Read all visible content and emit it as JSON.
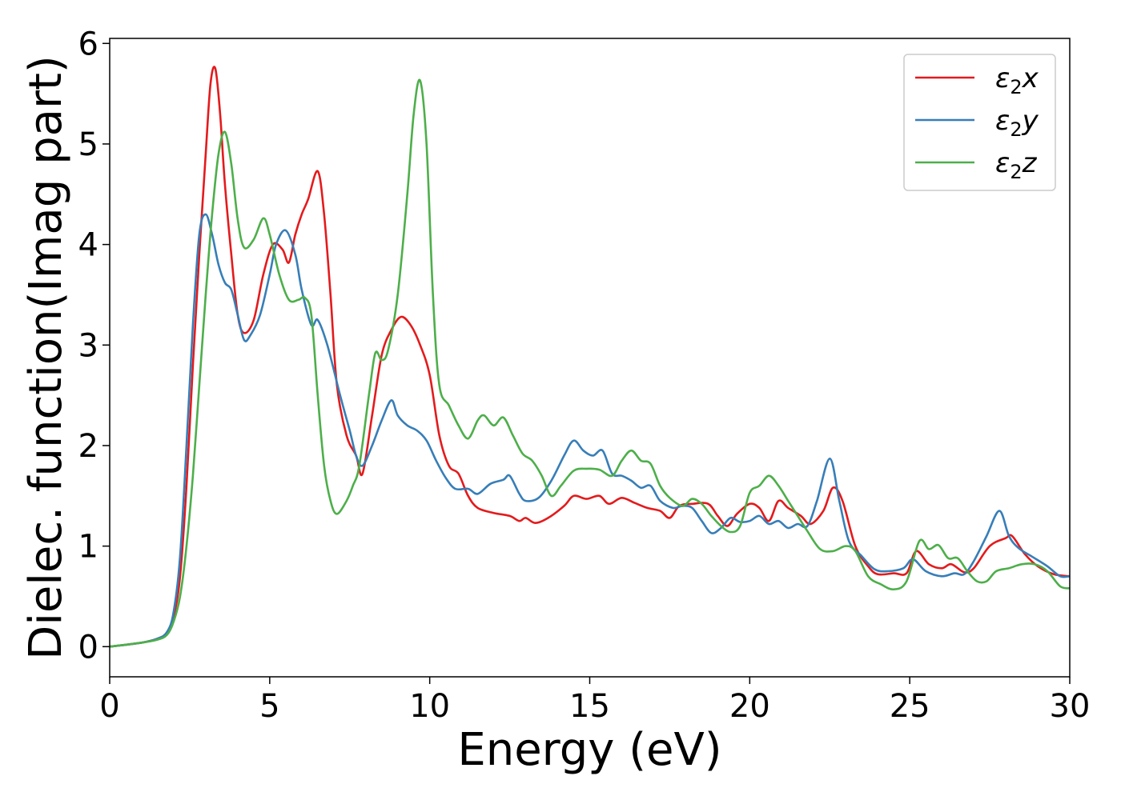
{
  "chart_data": {
    "type": "line",
    "title": "",
    "xlabel": "Energy (eV)",
    "ylabel": "Dielec. function(Imag part)",
    "xlim": [
      0,
      30
    ],
    "ylim": [
      -0.3,
      6.05
    ],
    "xticks": [
      0,
      5,
      10,
      15,
      20,
      25,
      30
    ],
    "yticks": [
      0,
      1,
      2,
      3,
      4,
      5,
      6
    ],
    "grid": false,
    "legend_position": "top-right",
    "series": [
      {
        "name": "ε2x",
        "legend_symbol": "ε",
        "legend_sub": "2",
        "legend_var": "x",
        "color": "#e41a1c",
        "points": [
          [
            0,
            0
          ],
          [
            1.0,
            0.04
          ],
          [
            1.5,
            0.08
          ],
          [
            1.8,
            0.14
          ],
          [
            2.0,
            0.3
          ],
          [
            2.2,
            0.7
          ],
          [
            2.4,
            1.6
          ],
          [
            2.6,
            2.8
          ],
          [
            2.8,
            3.9
          ],
          [
            3.0,
            4.9
          ],
          [
            3.15,
            5.6
          ],
          [
            3.3,
            5.75
          ],
          [
            3.45,
            5.3
          ],
          [
            3.6,
            4.6
          ],
          [
            3.8,
            3.9
          ],
          [
            4.0,
            3.3
          ],
          [
            4.2,
            3.12
          ],
          [
            4.5,
            3.25
          ],
          [
            4.8,
            3.7
          ],
          [
            5.1,
            4.0
          ],
          [
            5.4,
            3.95
          ],
          [
            5.6,
            3.82
          ],
          [
            5.8,
            4.1
          ],
          [
            6.0,
            4.3
          ],
          [
            6.2,
            4.45
          ],
          [
            6.5,
            4.73
          ],
          [
            6.7,
            4.3
          ],
          [
            6.9,
            3.5
          ],
          [
            7.1,
            2.6
          ],
          [
            7.4,
            2.1
          ],
          [
            7.7,
            1.9
          ],
          [
            7.9,
            1.72
          ],
          [
            8.2,
            2.3
          ],
          [
            8.5,
            2.9
          ],
          [
            8.8,
            3.15
          ],
          [
            9.1,
            3.28
          ],
          [
            9.4,
            3.2
          ],
          [
            9.7,
            3.0
          ],
          [
            10.0,
            2.7
          ],
          [
            10.3,
            2.1
          ],
          [
            10.6,
            1.8
          ],
          [
            10.9,
            1.72
          ],
          [
            11.2,
            1.5
          ],
          [
            11.5,
            1.38
          ],
          [
            12.0,
            1.33
          ],
          [
            12.5,
            1.3
          ],
          [
            12.8,
            1.25
          ],
          [
            13.0,
            1.28
          ],
          [
            13.3,
            1.23
          ],
          [
            13.7,
            1.28
          ],
          [
            14.2,
            1.4
          ],
          [
            14.5,
            1.5
          ],
          [
            14.9,
            1.47
          ],
          [
            15.3,
            1.5
          ],
          [
            15.6,
            1.42
          ],
          [
            16.0,
            1.48
          ],
          [
            16.4,
            1.43
          ],
          [
            16.8,
            1.38
          ],
          [
            17.2,
            1.35
          ],
          [
            17.5,
            1.28
          ],
          [
            17.8,
            1.4
          ],
          [
            18.2,
            1.42
          ],
          [
            18.7,
            1.42
          ],
          [
            19.0,
            1.3
          ],
          [
            19.3,
            1.2
          ],
          [
            19.6,
            1.32
          ],
          [
            20.0,
            1.42
          ],
          [
            20.3,
            1.38
          ],
          [
            20.6,
            1.25
          ],
          [
            20.9,
            1.45
          ],
          [
            21.2,
            1.38
          ],
          [
            21.6,
            1.3
          ],
          [
            21.9,
            1.22
          ],
          [
            22.3,
            1.35
          ],
          [
            22.6,
            1.58
          ],
          [
            22.9,
            1.45
          ],
          [
            23.3,
            1.0
          ],
          [
            23.7,
            0.8
          ],
          [
            24.0,
            0.72
          ],
          [
            24.5,
            0.73
          ],
          [
            24.9,
            0.73
          ],
          [
            25.2,
            0.95
          ],
          [
            25.6,
            0.82
          ],
          [
            26.0,
            0.78
          ],
          [
            26.3,
            0.82
          ],
          [
            26.7,
            0.74
          ],
          [
            27.0,
            0.78
          ],
          [
            27.5,
            1.0
          ],
          [
            28.0,
            1.08
          ],
          [
            28.2,
            1.1
          ],
          [
            28.6,
            0.92
          ],
          [
            29.0,
            0.8
          ],
          [
            29.5,
            0.72
          ],
          [
            30,
            0.7
          ]
        ]
      },
      {
        "name": "ε2y",
        "legend_symbol": "ε",
        "legend_sub": "2",
        "legend_var": "y",
        "color": "#377eb8",
        "points": [
          [
            0,
            0
          ],
          [
            1.0,
            0.04
          ],
          [
            1.5,
            0.08
          ],
          [
            1.8,
            0.15
          ],
          [
            2.0,
            0.35
          ],
          [
            2.2,
            0.9
          ],
          [
            2.4,
            2.0
          ],
          [
            2.6,
            3.2
          ],
          [
            2.8,
            4.1
          ],
          [
            3.0,
            4.3
          ],
          [
            3.2,
            4.1
          ],
          [
            3.4,
            3.8
          ],
          [
            3.6,
            3.62
          ],
          [
            3.8,
            3.55
          ],
          [
            4.0,
            3.3
          ],
          [
            4.2,
            3.05
          ],
          [
            4.4,
            3.1
          ],
          [
            4.7,
            3.3
          ],
          [
            5.0,
            3.7
          ],
          [
            5.2,
            4.0
          ],
          [
            5.5,
            4.14
          ],
          [
            5.8,
            3.9
          ],
          [
            6.0,
            3.55
          ],
          [
            6.3,
            3.2
          ],
          [
            6.5,
            3.25
          ],
          [
            6.8,
            3.0
          ],
          [
            7.2,
            2.5
          ],
          [
            7.5,
            2.15
          ],
          [
            7.7,
            1.9
          ],
          [
            7.9,
            1.8
          ],
          [
            8.2,
            2.0
          ],
          [
            8.5,
            2.25
          ],
          [
            8.8,
            2.45
          ],
          [
            9.0,
            2.3
          ],
          [
            9.3,
            2.2
          ],
          [
            9.6,
            2.15
          ],
          [
            9.9,
            2.05
          ],
          [
            10.2,
            1.85
          ],
          [
            10.5,
            1.68
          ],
          [
            10.8,
            1.57
          ],
          [
            11.2,
            1.57
          ],
          [
            11.5,
            1.52
          ],
          [
            11.9,
            1.62
          ],
          [
            12.3,
            1.66
          ],
          [
            12.5,
            1.7
          ],
          [
            12.8,
            1.52
          ],
          [
            13.0,
            1.45
          ],
          [
            13.4,
            1.48
          ],
          [
            13.8,
            1.65
          ],
          [
            14.2,
            1.9
          ],
          [
            14.5,
            2.05
          ],
          [
            14.8,
            1.95
          ],
          [
            15.1,
            1.9
          ],
          [
            15.4,
            1.95
          ],
          [
            15.7,
            1.72
          ],
          [
            16.0,
            1.7
          ],
          [
            16.3,
            1.65
          ],
          [
            16.6,
            1.58
          ],
          [
            16.9,
            1.6
          ],
          [
            17.2,
            1.45
          ],
          [
            17.6,
            1.38
          ],
          [
            17.9,
            1.4
          ],
          [
            18.2,
            1.38
          ],
          [
            18.5,
            1.25
          ],
          [
            18.8,
            1.13
          ],
          [
            19.1,
            1.18
          ],
          [
            19.4,
            1.28
          ],
          [
            19.7,
            1.24
          ],
          [
            20.0,
            1.25
          ],
          [
            20.3,
            1.3
          ],
          [
            20.6,
            1.22
          ],
          [
            20.9,
            1.25
          ],
          [
            21.2,
            1.18
          ],
          [
            21.5,
            1.22
          ],
          [
            21.8,
            1.2
          ],
          [
            22.1,
            1.45
          ],
          [
            22.5,
            1.87
          ],
          [
            22.8,
            1.45
          ],
          [
            23.1,
            1.05
          ],
          [
            23.5,
            0.9
          ],
          [
            23.9,
            0.77
          ],
          [
            24.3,
            0.75
          ],
          [
            24.8,
            0.78
          ],
          [
            25.1,
            0.87
          ],
          [
            25.5,
            0.75
          ],
          [
            26.0,
            0.7
          ],
          [
            26.4,
            0.73
          ],
          [
            26.7,
            0.72
          ],
          [
            27.0,
            0.85
          ],
          [
            27.4,
            1.1
          ],
          [
            27.8,
            1.35
          ],
          [
            28.1,
            1.1
          ],
          [
            28.4,
            0.98
          ],
          [
            28.8,
            0.9
          ],
          [
            29.3,
            0.8
          ],
          [
            29.7,
            0.7
          ],
          [
            30,
            0.7
          ]
        ]
      },
      {
        "name": "ε2z",
        "legend_symbol": "ε",
        "legend_sub": "2",
        "legend_var": "z",
        "color": "#4daf4a",
        "points": [
          [
            0,
            0
          ],
          [
            1.0,
            0.04
          ],
          [
            1.5,
            0.07
          ],
          [
            1.8,
            0.12
          ],
          [
            2.0,
            0.25
          ],
          [
            2.2,
            0.5
          ],
          [
            2.4,
            1.0
          ],
          [
            2.6,
            1.7
          ],
          [
            2.8,
            2.6
          ],
          [
            3.0,
            3.5
          ],
          [
            3.2,
            4.3
          ],
          [
            3.4,
            4.9
          ],
          [
            3.6,
            5.12
          ],
          [
            3.8,
            4.8
          ],
          [
            4.0,
            4.25
          ],
          [
            4.2,
            3.97
          ],
          [
            4.5,
            4.05
          ],
          [
            4.8,
            4.26
          ],
          [
            5.0,
            4.1
          ],
          [
            5.3,
            3.7
          ],
          [
            5.6,
            3.45
          ],
          [
            5.9,
            3.45
          ],
          [
            6.1,
            3.47
          ],
          [
            6.3,
            3.3
          ],
          [
            6.5,
            2.5
          ],
          [
            6.7,
            1.8
          ],
          [
            6.9,
            1.45
          ],
          [
            7.1,
            1.32
          ],
          [
            7.4,
            1.45
          ],
          [
            7.6,
            1.6
          ],
          [
            7.8,
            1.8
          ],
          [
            8.1,
            2.5
          ],
          [
            8.3,
            2.92
          ],
          [
            8.5,
            2.85
          ],
          [
            8.7,
            2.95
          ],
          [
            9.0,
            3.5
          ],
          [
            9.3,
            4.5
          ],
          [
            9.5,
            5.3
          ],
          [
            9.7,
            5.63
          ],
          [
            9.9,
            5.0
          ],
          [
            10.1,
            3.5
          ],
          [
            10.3,
            2.6
          ],
          [
            10.6,
            2.4
          ],
          [
            10.9,
            2.2
          ],
          [
            11.2,
            2.07
          ],
          [
            11.5,
            2.25
          ],
          [
            11.7,
            2.3
          ],
          [
            12.0,
            2.2
          ],
          [
            12.3,
            2.28
          ],
          [
            12.6,
            2.1
          ],
          [
            12.9,
            1.92
          ],
          [
            13.2,
            1.85
          ],
          [
            13.5,
            1.7
          ],
          [
            13.8,
            1.5
          ],
          [
            14.1,
            1.6
          ],
          [
            14.5,
            1.75
          ],
          [
            14.9,
            1.77
          ],
          [
            15.3,
            1.76
          ],
          [
            15.7,
            1.7
          ],
          [
            16.0,
            1.85
          ],
          [
            16.3,
            1.95
          ],
          [
            16.6,
            1.85
          ],
          [
            16.9,
            1.82
          ],
          [
            17.2,
            1.6
          ],
          [
            17.5,
            1.48
          ],
          [
            17.9,
            1.4
          ],
          [
            18.2,
            1.47
          ],
          [
            18.5,
            1.42
          ],
          [
            18.8,
            1.3
          ],
          [
            19.1,
            1.2
          ],
          [
            19.4,
            1.14
          ],
          [
            19.7,
            1.2
          ],
          [
            20.0,
            1.53
          ],
          [
            20.3,
            1.6
          ],
          [
            20.6,
            1.7
          ],
          [
            20.9,
            1.6
          ],
          [
            21.2,
            1.45
          ],
          [
            21.5,
            1.3
          ],
          [
            21.8,
            1.15
          ],
          [
            22.2,
            0.97
          ],
          [
            22.6,
            0.95
          ],
          [
            23.0,
            1.0
          ],
          [
            23.3,
            0.95
          ],
          [
            23.7,
            0.7
          ],
          [
            24.1,
            0.62
          ],
          [
            24.5,
            0.57
          ],
          [
            24.9,
            0.65
          ],
          [
            25.3,
            1.05
          ],
          [
            25.6,
            0.97
          ],
          [
            25.9,
            1.01
          ],
          [
            26.2,
            0.88
          ],
          [
            26.5,
            0.88
          ],
          [
            26.8,
            0.75
          ],
          [
            27.1,
            0.65
          ],
          [
            27.4,
            0.65
          ],
          [
            27.7,
            0.75
          ],
          [
            28.1,
            0.78
          ],
          [
            28.5,
            0.82
          ],
          [
            28.9,
            0.82
          ],
          [
            29.3,
            0.75
          ],
          [
            29.7,
            0.6
          ],
          [
            30,
            0.58
          ]
        ]
      }
    ]
  }
}
